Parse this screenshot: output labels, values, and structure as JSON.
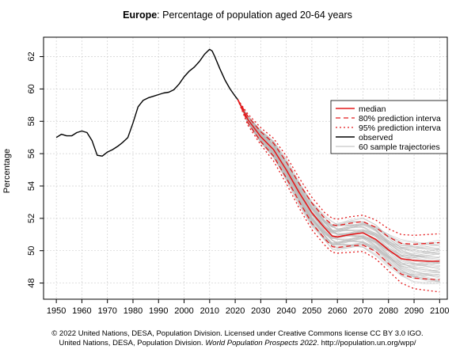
{
  "header": {
    "title_region": "Europe",
    "title_rest": ": Percentage of population aged 20-64 years"
  },
  "footer": {
    "line1": "© 2022 United Nations, DESA, Population Division. Licensed under Creative Commons license CC BY 3.0 IGO.",
    "line2_pre": "United Nations, DESA, Population Division. ",
    "line2_italic": "World Population Prospects 2022",
    "line2_post": ". http://population.un.org/wpp/"
  },
  "chart_data": {
    "type": "line",
    "title": "Europe: Percentage of population aged 20-64 years",
    "xlabel": "",
    "ylabel": "Percentage",
    "xlim": [
      1945,
      2103
    ],
    "ylim": [
      47.0,
      63.2
    ],
    "x_ticks": [
      1950,
      1960,
      1970,
      1980,
      1990,
      2000,
      2010,
      2020,
      2030,
      2040,
      2050,
      2060,
      2070,
      2080,
      2090,
      2100
    ],
    "y_ticks": [
      48,
      50,
      52,
      54,
      56,
      58,
      60,
      62
    ],
    "grid": true,
    "legend_position": "right",
    "legend": [
      {
        "label": "median",
        "style": "red-solid"
      },
      {
        "label": "80% prediction interva",
        "style": "red-dashed"
      },
      {
        "label": "95% prediction interva",
        "style": "red-dotted"
      },
      {
        "label": "observed",
        "style": "black-solid"
      },
      {
        "label": "60 sample trajectories",
        "style": "gray-solid"
      }
    ],
    "colors": {
      "projection": "#e41a1c",
      "observed": "#000000",
      "trajectories": "#b8b8b8",
      "grid": "#d0d0d0"
    },
    "series": [
      {
        "name": "observed",
        "x": [
          1950,
          1952,
          1954,
          1956,
          1958,
          1960,
          1962,
          1964,
          1966,
          1968,
          1970,
          1972,
          1974,
          1976,
          1978,
          1980,
          1982,
          1984,
          1986,
          1988,
          1990,
          1992,
          1994,
          1996,
          1998,
          2000,
          2002,
          2004,
          2006,
          2008,
          2010,
          2011,
          2012,
          2014,
          2016,
          2018,
          2020,
          2021
        ],
        "y": [
          57.0,
          57.2,
          57.1,
          57.1,
          57.3,
          57.4,
          57.3,
          56.8,
          55.9,
          55.85,
          56.1,
          56.25,
          56.45,
          56.7,
          57.0,
          57.9,
          58.9,
          59.3,
          59.45,
          59.55,
          59.65,
          59.75,
          59.8,
          59.95,
          60.3,
          60.75,
          61.1,
          61.35,
          61.7,
          62.15,
          62.45,
          62.35,
          62.0,
          61.25,
          60.55,
          60.0,
          59.55,
          59.35
        ]
      },
      {
        "name": "median",
        "x": [
          2021,
          2025,
          2030,
          2035,
          2040,
          2045,
          2050,
          2055,
          2058,
          2060,
          2065,
          2070,
          2075,
          2080,
          2085,
          2090,
          2095,
          2100
        ],
        "y": [
          59.35,
          58.1,
          57.05,
          56.25,
          55.0,
          53.6,
          52.35,
          51.4,
          50.9,
          50.85,
          51.0,
          51.1,
          50.7,
          50.05,
          49.5,
          49.4,
          49.35,
          49.35
        ]
      },
      {
        "name": "80% prediction interva (upper)",
        "x": [
          2021,
          2025,
          2030,
          2035,
          2040,
          2045,
          2050,
          2055,
          2058,
          2060,
          2065,
          2070,
          2075,
          2080,
          2085,
          2090,
          2095,
          2100
        ],
        "y": [
          59.35,
          58.3,
          57.35,
          56.65,
          55.5,
          54.15,
          52.95,
          52.0,
          51.6,
          51.55,
          51.7,
          51.8,
          51.45,
          50.85,
          50.45,
          50.4,
          50.45,
          50.5
        ]
      },
      {
        "name": "80% prediction interva (lower)",
        "x": [
          2021,
          2025,
          2030,
          2035,
          2040,
          2045,
          2050,
          2055,
          2058,
          2060,
          2065,
          2070,
          2075,
          2080,
          2085,
          2090,
          2095,
          2100
        ],
        "y": [
          59.35,
          57.9,
          56.75,
          55.85,
          54.5,
          53.05,
          51.7,
          50.75,
          50.25,
          50.2,
          50.3,
          50.35,
          49.95,
          49.2,
          48.55,
          48.3,
          48.25,
          48.2
        ]
      },
      {
        "name": "95% prediction interva (upper)",
        "x": [
          2021,
          2025,
          2030,
          2035,
          2040,
          2045,
          2050,
          2055,
          2058,
          2060,
          2065,
          2070,
          2075,
          2080,
          2085,
          2090,
          2095,
          2100
        ],
        "y": [
          59.35,
          58.45,
          57.6,
          56.95,
          55.85,
          54.5,
          53.3,
          52.35,
          52.0,
          51.95,
          52.1,
          52.2,
          51.9,
          51.35,
          51.0,
          50.95,
          51.0,
          51.05
        ]
      },
      {
        "name": "95% prediction interva (lower)",
        "x": [
          2021,
          2025,
          2030,
          2035,
          2040,
          2045,
          2050,
          2055,
          2058,
          2060,
          2065,
          2070,
          2075,
          2080,
          2085,
          2090,
          2095,
          2100
        ],
        "y": [
          59.35,
          57.75,
          56.55,
          55.55,
          54.15,
          52.65,
          51.3,
          50.35,
          49.9,
          49.85,
          49.9,
          49.95,
          49.5,
          48.75,
          48.0,
          47.65,
          47.55,
          47.45
        ]
      }
    ]
  }
}
